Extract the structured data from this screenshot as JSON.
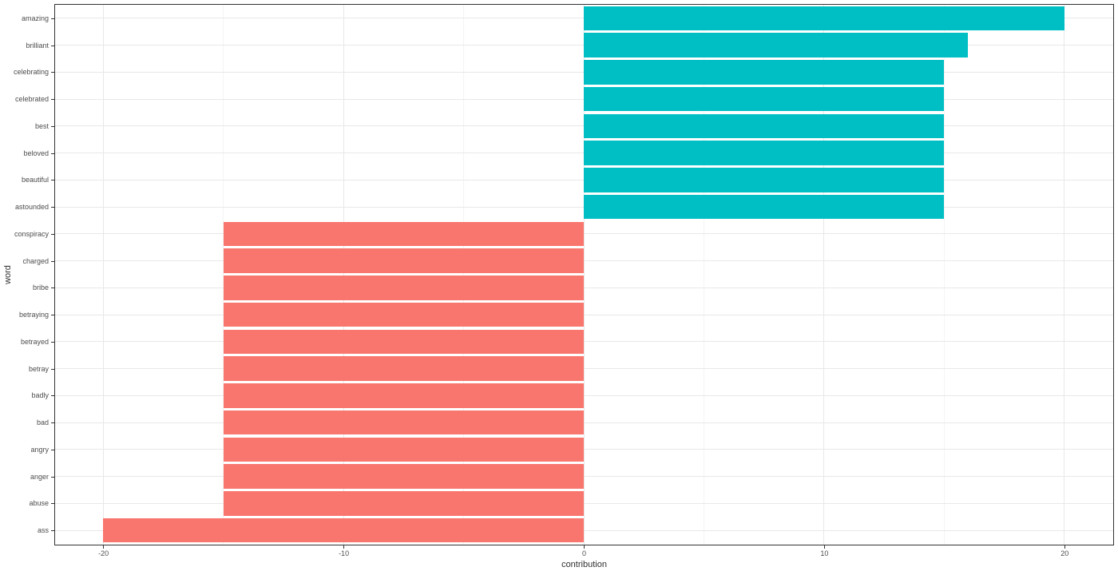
{
  "chart_data": {
    "type": "bar",
    "orientation": "horizontal",
    "title": "",
    "xlabel": "contribution",
    "ylabel": "word",
    "xlim": [
      -22,
      22
    ],
    "x_major_ticks": [
      -20,
      -10,
      0,
      10,
      20
    ],
    "x_tick_labels": [
      "-20",
      "-10",
      "0",
      "10",
      "20"
    ],
    "x_minor_ticks": [
      -15,
      -5,
      5,
      15
    ],
    "grid": true,
    "legend": "none",
    "bar_colors": {
      "positive": "#00BFC4",
      "negative": "#F8766D"
    },
    "categories": [
      "amazing",
      "brilliant",
      "celebrating",
      "celebrated",
      "best",
      "beloved",
      "beautiful",
      "astounded",
      "conspiracy",
      "charged",
      "bribe",
      "betraying",
      "betrayed",
      "betray",
      "badly",
      "bad",
      "angry",
      "anger",
      "abuse",
      "ass"
    ],
    "values": [
      20,
      16,
      15,
      15,
      15,
      15,
      15,
      15,
      -15,
      -15,
      -15,
      -15,
      -15,
      -15,
      -15,
      -15,
      -15,
      -15,
      -15,
      -20
    ]
  }
}
